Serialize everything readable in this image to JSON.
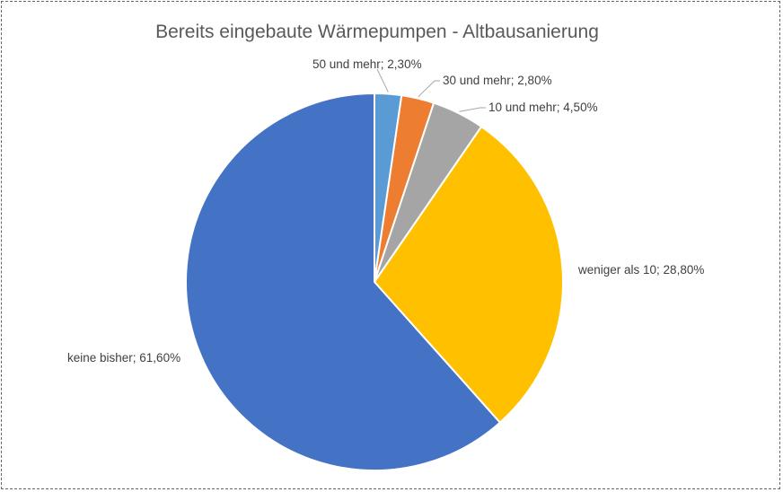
{
  "chart_data": {
    "type": "pie",
    "title": "Bereits eingebaute Wärmepumpen - Altbausanierung",
    "slices": [
      {
        "name": "50 und mehr",
        "value": 2.3,
        "label": "50 und mehr; 2,30%",
        "color": "#5B9BD5"
      },
      {
        "name": "30 und mehr",
        "value": 2.8,
        "label": "30 und mehr; 2,80%",
        "color": "#ED7D31"
      },
      {
        "name": "10 und mehr",
        "value": 4.5,
        "label": "10 und mehr; 4,50%",
        "color": "#A5A5A5"
      },
      {
        "name": "weniger als 10",
        "value": 28.8,
        "label": "weniger als 10; 28,80%",
        "color": "#FFC000"
      },
      {
        "name": "keine bisher",
        "value": 61.6,
        "label": "keine bisher; 61,60%",
        "color": "#4472C4"
      }
    ],
    "legend": "none",
    "start_angle": "12 o'clock, clockwise"
  }
}
